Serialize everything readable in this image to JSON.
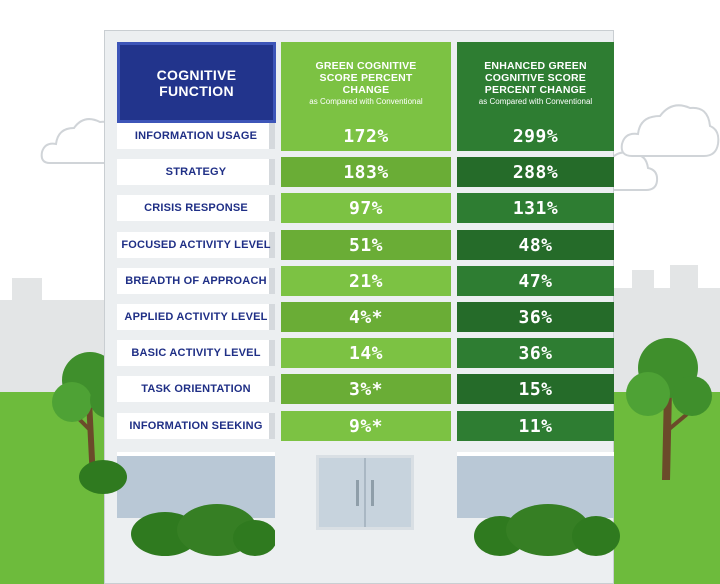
{
  "chart_data": {
    "type": "table",
    "headers": {
      "function": "COGNITIVE FUNCTION",
      "green": {
        "title": "GREEN COGNITIVE SCORE PERCENT CHANGE",
        "subtitle": "as Compared with Conventional"
      },
      "enhanced": {
        "title": "ENHANCED GREEN COGNITIVE SCORE PERCENT CHANGE",
        "subtitle": "as Compared with Conventional"
      }
    },
    "rows": [
      {
        "function": "INFORMATION USAGE",
        "green": "172%",
        "enhanced": "299%"
      },
      {
        "function": "STRATEGY",
        "green": "183%",
        "enhanced": "288%"
      },
      {
        "function": "CRISIS RESPONSE",
        "green": "97%",
        "enhanced": "131%"
      },
      {
        "function": "FOCUSED ACTIVITY LEVEL",
        "green": "51%",
        "enhanced": "48%"
      },
      {
        "function": "BREADTH OF APPROACH",
        "green": "21%",
        "enhanced": "47%"
      },
      {
        "function": "APPLIED ACTIVITY LEVEL",
        "green": "4%*",
        "enhanced": "36%"
      },
      {
        "function": "BASIC ACTIVITY LEVEL",
        "green": "14%",
        "enhanced": "36%"
      },
      {
        "function": "TASK ORIENTATION",
        "green": "3%*",
        "enhanced": "15%"
      },
      {
        "function": "INFORMATION SEEKING",
        "green": "9%*",
        "enhanced": "11%"
      }
    ],
    "colors": {
      "header_function": "#22348c",
      "green_column": "#7cc243",
      "enhanced_column": "#2e7d32",
      "label_text": "#1f2f86"
    }
  }
}
